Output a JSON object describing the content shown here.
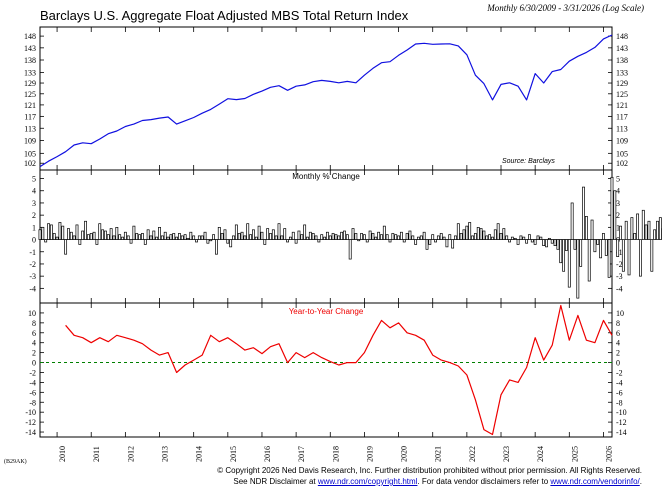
{
  "title": "Barclays U.S. Aggregate Float Adjusted MBS Total Return Index",
  "subtitle": "Monthly 6/30/2009 - 3/31/2026 (Log Scale)",
  "chart_code": "(B29AK)",
  "footer": {
    "line1": "© Copyright 2026 Ned Davis Research, Inc. Further distribution prohibited without prior permission. All Rights Reserved.",
    "line2_prefix": "See NDR Disclaimer at ",
    "line2_link1": "www.ndr.com/copyright.html",
    "line2_mid": ". For data vendor disclaimers refer to ",
    "line2_link2": "www.ndr.com/vendorinfo/",
    "line2_suffix": "."
  },
  "colors": {
    "index_line": "#1010e0",
    "yoy_line": "#ee0000",
    "zero_line": "#008000",
    "bars": "#000000",
    "bar_fill": "#ffffff"
  },
  "chart_data": [
    {
      "type": "line",
      "name": "index",
      "title": "Barclays U.S. Aggregate Float Adjusted MBS Total Return Index",
      "scale": "log",
      "source_note": "Source: Barclays",
      "ylim": [
        100,
        152
      ],
      "yticks": [
        102,
        105,
        109,
        113,
        117,
        121,
        125,
        129,
        133,
        138,
        143,
        148
      ],
      "x_points": [
        2009.5,
        2009.75,
        2010.0,
        2010.25,
        2010.5,
        2010.75,
        2011.0,
        2011.25,
        2011.5,
        2011.75,
        2012.0,
        2012.25,
        2012.5,
        2012.75,
        2013.0,
        2013.25,
        2013.5,
        2013.75,
        2014.0,
        2014.25,
        2014.5,
        2014.75,
        2015.0,
        2015.25,
        2015.5,
        2015.75,
        2016.0,
        2016.25,
        2016.5,
        2016.75,
        2017.0,
        2017.25,
        2017.5,
        2017.75,
        2018.0,
        2018.25,
        2018.5,
        2018.75,
        2019.0,
        2019.25,
        2019.5,
        2019.75,
        2020.0,
        2020.25,
        2020.5,
        2020.75,
        2021.0,
        2021.25,
        2021.5,
        2021.75,
        2022.0,
        2022.25,
        2022.5,
        2022.75,
        2023.0,
        2023.25,
        2023.5,
        2023.75,
        2024.0,
        2024.25,
        2024.5,
        2024.75,
        2025.0,
        2025.25,
        2025.5,
        2025.75,
        2026.0,
        2026.25
      ],
      "values": [
        101.0,
        102.6,
        104.0,
        105.5,
        107.6,
        108.3,
        108.0,
        109.5,
        111.2,
        112.1,
        113.6,
        114.4,
        115.6,
        115.9,
        116.4,
        116.8,
        114.4,
        115.5,
        116.6,
        118.1,
        119.4,
        121.3,
        123.2,
        122.9,
        123.3,
        124.8,
        126.0,
        127.4,
        128.0,
        126.3,
        127.8,
        128.3,
        129.5,
        130.0,
        129.6,
        129.1,
        129.6,
        129.1,
        132.0,
        134.7,
        136.9,
        137.3,
        139.9,
        142.1,
        144.6,
        144.9,
        144.5,
        144.6,
        144.7,
        143.8,
        140.1,
        132.0,
        128.8,
        122.8,
        128.5,
        129.1,
        127.8,
        122.8,
        132.6,
        129.0,
        133.4,
        134.2,
        137.5,
        139.5,
        141.1,
        143.2,
        146.8,
        148.5
      ]
    },
    {
      "type": "bar",
      "name": "monthly_pct_change",
      "title": "Monthly % Change",
      "ylim": [
        -5.2,
        5.7
      ],
      "yticks": [
        -4,
        -3,
        -2,
        -1,
        0,
        1,
        2,
        3,
        4,
        5
      ],
      "start": 2009.5,
      "step": 0.08333,
      "values": [
        0.8,
        1.0,
        -0.2,
        1.3,
        1.2,
        0.5,
        0.2,
        1.4,
        1.1,
        -1.2,
        0.9,
        0.6,
        0.3,
        1.2,
        -0.4,
        0.7,
        1.5,
        0.4,
        0.5,
        0.6,
        -0.4,
        1.3,
        0.8,
        0.7,
        0.4,
        0.9,
        0.3,
        1.0,
        0.4,
        0.2,
        0.6,
        0.3,
        -0.3,
        1.1,
        0.5,
        0.4,
        0.5,
        -0.4,
        0.8,
        0.3,
        0.7,
        0.2,
        1.0,
        0.3,
        0.6,
        0.2,
        0.4,
        0.5,
        0.2,
        0.5,
        0.3,
        0.4,
        0.1,
        0.6,
        0.3,
        -0.2,
        0.3,
        0.3,
        0.6,
        -0.3,
        -0.1,
        0.4,
        -1.2,
        1.0,
        0.5,
        0.8,
        -0.3,
        -0.6,
        0.3,
        1.2,
        0.5,
        0.6,
        0.3,
        1.3,
        0.4,
        0.8,
        0.2,
        1.1,
        0.6,
        -0.4,
        0.9,
        0.5,
        0.8,
        0.3,
        1.3,
        0.3,
        0.9,
        -0.2,
        0.2,
        0.6,
        -0.3,
        0.7,
        0.4,
        1.2,
        0.2,
        0.6,
        0.5,
        0.3,
        -0.2,
        0.4,
        0.2,
        0.6,
        0.3,
        0.5,
        0.4,
        0.3,
        0.6,
        0.7,
        0.4,
        -1.6,
        0.9,
        0.5,
        -0.1,
        0.5,
        0.4,
        -0.2,
        0.7,
        0.5,
        0.2,
        0.6,
        0.4,
        1.1,
        0.4,
        -0.2,
        0.5,
        0.4,
        0.3,
        0.6,
        -0.2,
        0.5,
        0.7,
        0.3,
        -0.4,
        0.2,
        0.3,
        0.6,
        -0.8,
        -0.4,
        0.4,
        -0.2,
        0.3,
        0.5,
        0.2,
        -0.6,
        0.4,
        -0.7,
        0.3,
        1.3,
        0.5,
        0.8,
        1.1,
        1.4,
        0.3,
        0.5,
        1.0,
        0.9,
        0.7,
        0.3,
        0.4,
        0.2,
        0.8,
        1.3,
        0.5,
        0.9,
        0.3,
        -0.2,
        0.2,
        0.1,
        -0.4,
        0.3,
        0.2,
        -0.3,
        0.4,
        -0.2,
        -0.4,
        0.3,
        0.2,
        -0.5,
        -0.6,
        0.1,
        -0.3,
        -0.5,
        -0.8,
        -1.9,
        -2.6,
        -0.9,
        -3.9,
        3.0,
        -0.8,
        -4.8,
        -2.2,
        4.3,
        1.9,
        -3.4,
        1.6,
        -1.0,
        -0.4,
        -1.5,
        0.5,
        -1.3,
        -3.1,
        5.1,
        4.0,
        -1.4,
        1.1,
        -2.6,
        1.5,
        -2.9,
        1.8,
        0.5,
        2.1,
        -3.0,
        2.4,
        1.2,
        1.5,
        -2.6,
        0.8,
        1.5,
        1.8,
        0.9,
        1.4,
        0.5,
        0.7,
        1.1,
        0.4,
        1.6,
        -1.5
      ]
    },
    {
      "type": "line",
      "name": "year_to_year_change",
      "title": "Year-to-Year Change",
      "ylim": [
        -15,
        12
      ],
      "yticks": [
        -14,
        -12,
        -10,
        -8,
        -6,
        -4,
        -2,
        0,
        2,
        4,
        6,
        8,
        10
      ],
      "reference_line": 0,
      "x_points": [
        2010.25,
        2010.5,
        2010.75,
        2011.0,
        2011.25,
        2011.5,
        2011.75,
        2012.0,
        2012.25,
        2012.5,
        2012.75,
        2013.0,
        2013.25,
        2013.5,
        2013.75,
        2014.0,
        2014.25,
        2014.5,
        2014.75,
        2015.0,
        2015.25,
        2015.5,
        2015.75,
        2016.0,
        2016.25,
        2016.5,
        2016.75,
        2017.0,
        2017.25,
        2017.5,
        2017.75,
        2018.0,
        2018.25,
        2018.5,
        2018.75,
        2019.0,
        2019.25,
        2019.5,
        2019.75,
        2020.0,
        2020.25,
        2020.5,
        2020.75,
        2021.0,
        2021.25,
        2021.5,
        2021.75,
        2022.0,
        2022.25,
        2022.5,
        2022.75,
        2023.0,
        2023.25,
        2023.5,
        2023.75,
        2024.0,
        2024.25,
        2024.5,
        2024.75,
        2025.0,
        2025.25,
        2025.5,
        2025.75,
        2026.0,
        2026.25
      ],
      "values": [
        7.5,
        5.5,
        5.0,
        4.0,
        5.0,
        4.2,
        5.5,
        5.0,
        4.5,
        3.8,
        2.5,
        1.5,
        2.0,
        -2.0,
        -0.5,
        0.5,
        1.5,
        5.5,
        4.2,
        5.0,
        3.8,
        2.5,
        3.0,
        1.8,
        3.2,
        3.8,
        0.0,
        2.0,
        1.0,
        2.0,
        1.0,
        0.2,
        -0.5,
        0.0,
        0.0,
        2.0,
        5.5,
        8.5,
        7.0,
        8.0,
        6.0,
        5.5,
        4.5,
        1.5,
        0.5,
        0.0,
        -0.7,
        -2.5,
        -7.5,
        -13.5,
        -14.5,
        -6.5,
        -3.5,
        -4.0,
        -1.0,
        5.0,
        0.5,
        3.5,
        11.5,
        4.5,
        9.5,
        4.5,
        4.0,
        8.5,
        5.5
      ]
    }
  ],
  "x_axis": {
    "labels": [
      "2010",
      "2011",
      "2012",
      "2013",
      "2014",
      "2015",
      "2016",
      "2017",
      "2018",
      "2019",
      "2020",
      "2021",
      "2022",
      "2023",
      "2024",
      "2025",
      "2026"
    ],
    "x_start": 2009.5,
    "x_end": 2026.25
  }
}
